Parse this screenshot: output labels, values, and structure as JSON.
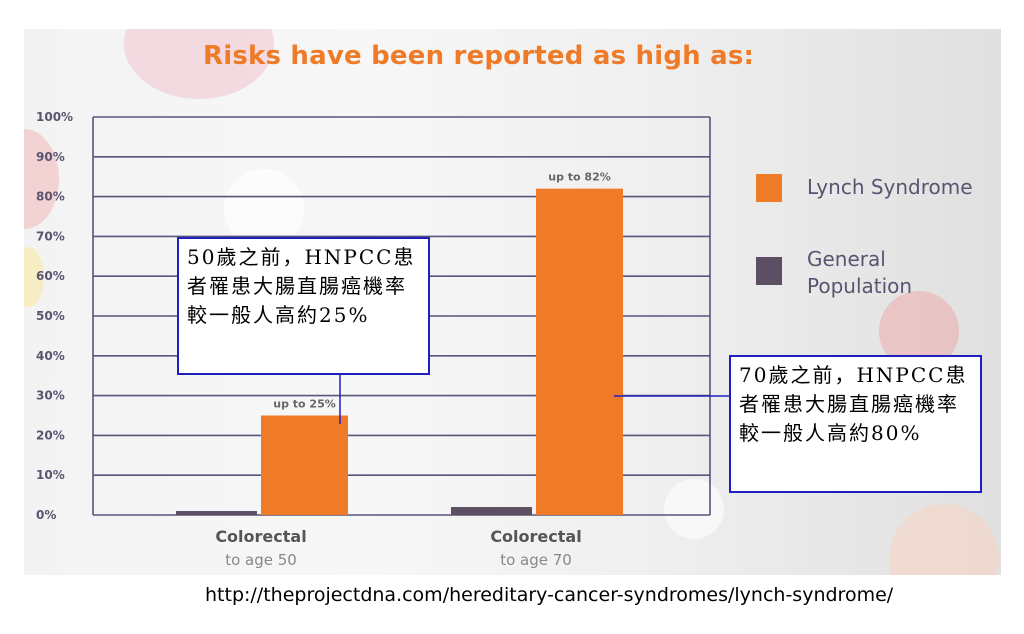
{
  "chart_data": {
    "type": "bar",
    "title": "Risks have been reported as high as:",
    "categories": [
      {
        "line1": "Colorectal",
        "line2": "to age 50"
      },
      {
        "line1": "Colorectal",
        "line2": "to age 70"
      }
    ],
    "series": [
      {
        "name": "Lynch Syndrome",
        "color": "#ef7b29",
        "values": [
          25,
          82
        ],
        "data_labels": [
          "up to 25%",
          "up to 82%"
        ]
      },
      {
        "name": "General Population",
        "color": "#5c4f63",
        "values": [
          1,
          2
        ]
      }
    ],
    "yticks": [
      "0%",
      "10%",
      "20%",
      "30%",
      "40%",
      "50%",
      "60%",
      "70%",
      "80%",
      "90%",
      "100%"
    ],
    "ylim": [
      0,
      100
    ],
    "grid": true,
    "legend_position": "right"
  },
  "legend": {
    "items": [
      {
        "label": "Lynch Syndrome",
        "color": "#ef7b29"
      },
      {
        "label": "General Population",
        "color": "#5c4f63"
      }
    ]
  },
  "annotations": [
    {
      "text": "50歲之前，HNPCC患者罹患大腸直腸癌機率較一般人高約25%"
    },
    {
      "text": "70歲之前，HNPCC患者罹患大腸直腸癌機率較一般人高約80%"
    }
  ],
  "source": "http://theprojectdna.com/hereditary-cancer-syndromes/lynch-syndrome/"
}
